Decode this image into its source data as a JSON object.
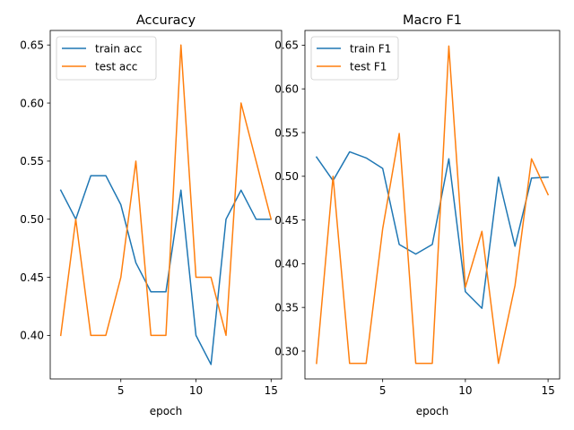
{
  "chart_data": [
    {
      "type": "line",
      "title": "Accuracy",
      "xlabel": "epoch",
      "ylabel": "",
      "x": [
        1,
        2,
        3,
        4,
        5,
        6,
        7,
        8,
        9,
        10,
        11,
        12,
        13,
        14,
        15
      ],
      "xlim": [
        0.3,
        15.7
      ],
      "ylim": [
        0.3625,
        0.6625
      ],
      "xticks": [
        5,
        10,
        15
      ],
      "xtick_labels": [
        "5",
        "10",
        "15"
      ],
      "yticks": [
        0.4,
        0.45,
        0.5,
        0.55,
        0.6,
        0.65
      ],
      "ytick_labels": [
        "0.40",
        "0.45",
        "0.50",
        "0.55",
        "0.60",
        "0.65"
      ],
      "grid": false,
      "legend_position": "top-left",
      "series": [
        {
          "name": "train acc",
          "color": "#1f77b4",
          "values": [
            0.525,
            0.5,
            0.5375,
            0.5375,
            0.5125,
            0.4625,
            0.4375,
            0.4375,
            0.525,
            0.4,
            0.375,
            0.5,
            0.525,
            0.5,
            0.5
          ]
        },
        {
          "name": "test acc",
          "color": "#ff7f0e",
          "values": [
            0.4,
            0.5,
            0.4,
            0.4,
            0.45,
            0.55,
            0.4,
            0.4,
            0.65,
            0.45,
            0.45,
            0.4,
            0.6,
            0.55,
            0.5
          ]
        }
      ]
    },
    {
      "type": "line",
      "title": "Macro F1",
      "xlabel": "epoch",
      "ylabel": "",
      "x": [
        1,
        2,
        3,
        4,
        5,
        6,
        7,
        8,
        9,
        10,
        11,
        12,
        13,
        14,
        15
      ],
      "xlim": [
        0.3,
        15.7
      ],
      "ylim": [
        0.2682,
        0.6668
      ],
      "xticks": [
        5,
        10,
        15
      ],
      "xtick_labels": [
        "5",
        "10",
        "15"
      ],
      "yticks": [
        0.3,
        0.35,
        0.4,
        0.45,
        0.5,
        0.55,
        0.6,
        0.65
      ],
      "ytick_labels": [
        "0.30",
        "0.35",
        "0.40",
        "0.45",
        "0.50",
        "0.55",
        "0.60",
        "0.65"
      ],
      "grid": false,
      "legend_position": "top-left",
      "series": [
        {
          "name": "train F1",
          "color": "#1f77b4",
          "values": [
            0.522,
            0.495,
            0.528,
            0.521,
            0.509,
            0.422,
            0.411,
            0.422,
            0.52,
            0.368,
            0.349,
            0.499,
            0.42,
            0.498,
            0.499
          ]
        },
        {
          "name": "test F1",
          "color": "#ff7f0e",
          "values": [
            0.286,
            0.5,
            0.286,
            0.286,
            0.44,
            0.549,
            0.286,
            0.286,
            0.649,
            0.373,
            0.437,
            0.286,
            0.375,
            0.52,
            0.479
          ]
        }
      ]
    }
  ]
}
